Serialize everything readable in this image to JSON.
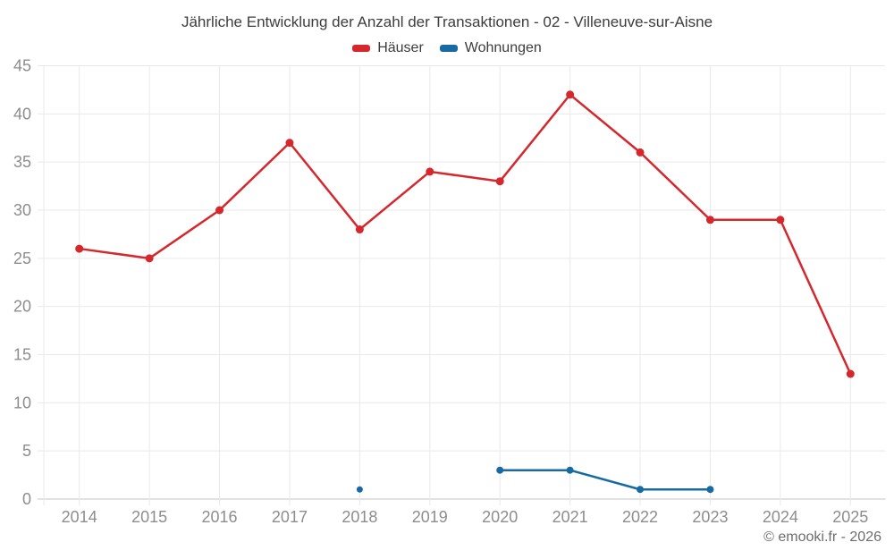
{
  "page": {
    "title": "Jährliche Entwicklung der Anzahl der Transaktionen - 02 - Villeneuve-sur-Aisne",
    "footer": "© emooki.fr - 2026"
  },
  "colors": {
    "haeuser": "#d5282d",
    "wohnungen": "#176ba2",
    "grid": "#e9e9e9",
    "axis_line": "#c6c6c6",
    "tick_label": "#8d8d8d",
    "title_text": "#3d3d3d",
    "footer_text": "#6d6d6d"
  },
  "chart_data": {
    "type": "line",
    "title": "Jährliche Entwicklung der Anzahl der Transaktionen - 02 - Villeneuve-sur-Aisne",
    "categories": [
      "2014",
      "2015",
      "2016",
      "2017",
      "2018",
      "2019",
      "2020",
      "2021",
      "2022",
      "2023",
      "2024",
      "2025"
    ],
    "series": [
      {
        "name": "Häuser",
        "color": "#d5282d",
        "values": [
          26,
          25,
          30,
          37,
          28,
          34,
          33,
          42,
          36,
          29,
          29,
          13
        ]
      },
      {
        "name": "Wohnungen",
        "color": "#176ba2",
        "values": [
          null,
          null,
          null,
          null,
          1,
          null,
          3,
          3,
          1,
          1,
          null,
          null
        ]
      }
    ],
    "xlabel": "",
    "ylabel": "",
    "ylim": [
      0,
      45
    ],
    "yticks": [
      0,
      5,
      10,
      15,
      20,
      25,
      30,
      35,
      40,
      45
    ],
    "grid": true,
    "legend_position": "top",
    "markers": true
  }
}
